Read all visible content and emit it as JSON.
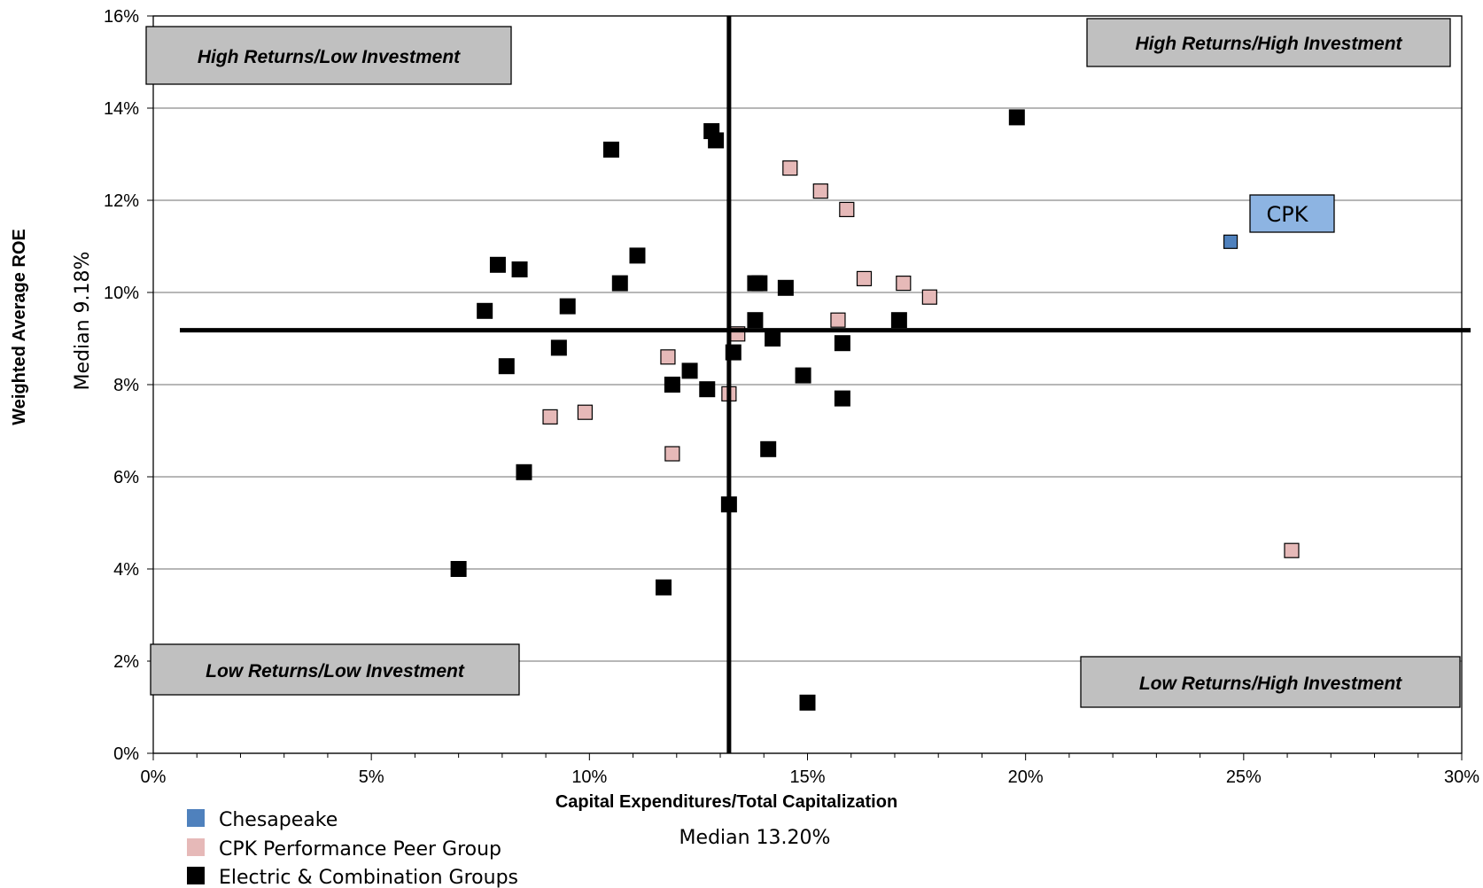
{
  "chart_data": {
    "type": "scatter",
    "title": "",
    "xlabel": "Capital  Expenditures/Total Capitalization",
    "ylabel": "Weighted Average ROE",
    "xlim": [
      0,
      30
    ],
    "ylim": [
      0,
      16
    ],
    "x_ticks": [
      "0%",
      "5%",
      "10%",
      "15%",
      "20%",
      "25%",
      "30%"
    ],
    "y_ticks": [
      "0%",
      "2%",
      "4%",
      "6%",
      "8%",
      "10%",
      "12%",
      "14%",
      "16%"
    ],
    "grid": "horizontal",
    "medians": {
      "x": 13.2,
      "y": 9.18,
      "x_label": "Median 13.20%",
      "y_label": "Median 9.18%"
    },
    "quadrant_labels": {
      "top_left": "High Returns/Low Investment",
      "top_right": "High Returns/High Investment",
      "bottom_left": "Low Returns/Low Investment",
      "bottom_right": "Low Returns/High Investment"
    },
    "callout": "CPK",
    "legend_position": "bottom-left",
    "series": [
      {
        "name": "Chesapeake",
        "color": "#4f81bd",
        "points": [
          [
            24.7,
            11.1
          ]
        ]
      },
      {
        "name": "CPK Performance Peer Group",
        "color": "#e6b9b8",
        "points": [
          [
            14.6,
            12.7
          ],
          [
            15.3,
            12.2
          ],
          [
            15.9,
            11.8
          ],
          [
            16.3,
            10.3
          ],
          [
            17.2,
            10.2
          ],
          [
            17.8,
            9.9
          ],
          [
            15.7,
            9.4
          ],
          [
            13.4,
            9.1
          ],
          [
            11.8,
            8.6
          ],
          [
            13.2,
            7.8
          ],
          [
            9.1,
            7.3
          ],
          [
            9.9,
            7.4
          ],
          [
            11.9,
            6.5
          ],
          [
            26.1,
            4.4
          ]
        ]
      },
      {
        "name": "Electric & Combination Groups",
        "color": "#000000",
        "points": [
          [
            19.8,
            13.8
          ],
          [
            12.8,
            13.5
          ],
          [
            12.9,
            13.3
          ],
          [
            10.5,
            13.1
          ],
          [
            11.1,
            10.8
          ],
          [
            7.9,
            10.6
          ],
          [
            8.4,
            10.5
          ],
          [
            10.7,
            10.2
          ],
          [
            13.8,
            10.2
          ],
          [
            13.9,
            10.2
          ],
          [
            14.5,
            10.1
          ],
          [
            7.6,
            9.6
          ],
          [
            9.5,
            9.7
          ],
          [
            13.8,
            9.4
          ],
          [
            17.1,
            9.4
          ],
          [
            14.2,
            9.0
          ],
          [
            15.8,
            8.9
          ],
          [
            9.3,
            8.8
          ],
          [
            13.3,
            8.7
          ],
          [
            8.1,
            8.4
          ],
          [
            12.3,
            8.3
          ],
          [
            14.9,
            8.2
          ],
          [
            11.9,
            8.0
          ],
          [
            12.7,
            7.9
          ],
          [
            15.8,
            7.7
          ],
          [
            14.1,
            6.6
          ],
          [
            8.5,
            6.1
          ],
          [
            13.2,
            5.4
          ],
          [
            7.0,
            4.0
          ],
          [
            11.7,
            3.6
          ],
          [
            15.0,
            1.1
          ]
        ]
      }
    ]
  }
}
